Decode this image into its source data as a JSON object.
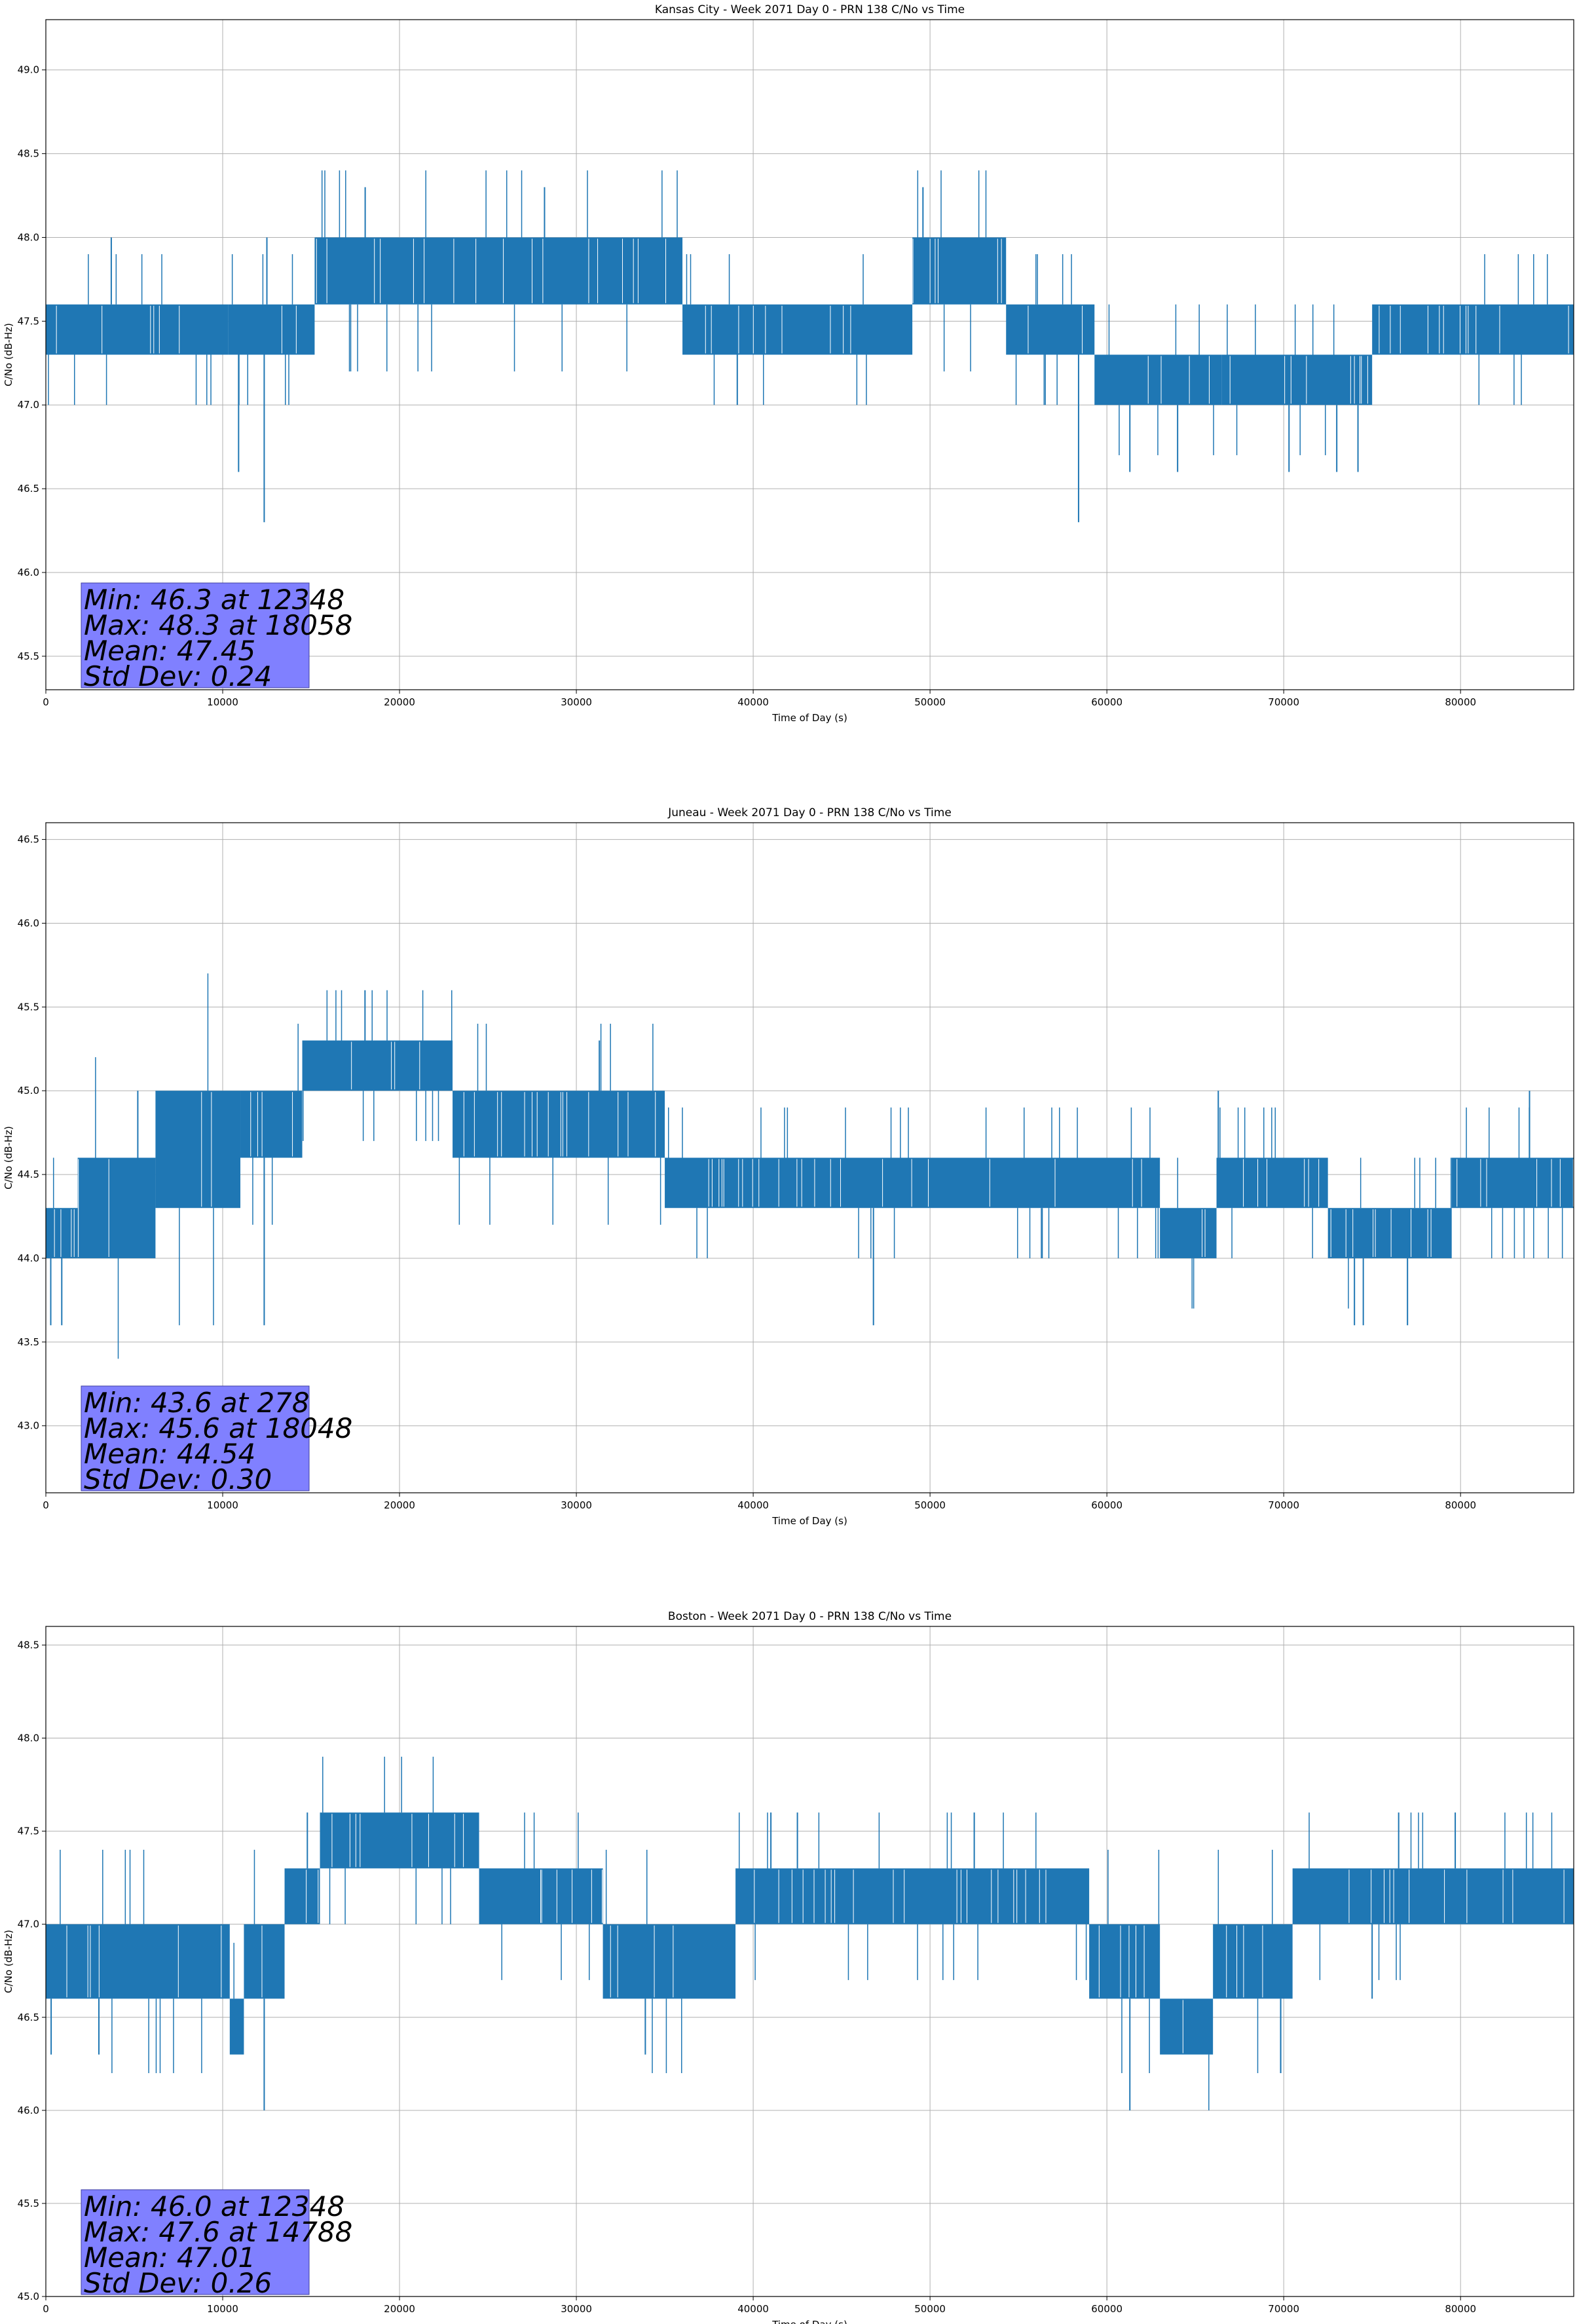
{
  "chart_data": [
    {
      "type": "line",
      "title": "Kansas City - Week 2071 Day 0 - PRN 138 C/No vs Time",
      "xlabel": "Time of Day (s)",
      "ylabel": "C/No (dB-Hz)",
      "xlim": [
        0,
        86400
      ],
      "ylim": [
        45.3,
        49.3
      ],
      "xticks": [
        0,
        10000,
        20000,
        30000,
        40000,
        50000,
        60000,
        70000,
        80000
      ],
      "yticks": [
        45.5,
        46.0,
        46.5,
        47.0,
        47.5,
        48.0,
        48.5,
        49.0
      ],
      "grid": true,
      "color": "#1f77b4",
      "series": [
        {
          "name": "C/No",
          "segments": [
            {
              "x_start": 0,
              "x_end": 10300,
              "low": 47.3,
              "high": 47.6
            },
            {
              "x_start": 10300,
              "x_end": 15200,
              "low": 47.3,
              "high": 47.6
            },
            {
              "x_start": 15200,
              "x_end": 36000,
              "low": 47.6,
              "high": 48.0
            },
            {
              "x_start": 36000,
              "x_end": 49000,
              "low": 47.3,
              "high": 47.6
            },
            {
              "x_start": 49000,
              "x_end": 54300,
              "low": 47.6,
              "high": 48.0
            },
            {
              "x_start": 54300,
              "x_end": 59300,
              "low": 47.3,
              "high": 47.6
            },
            {
              "x_start": 59300,
              "x_end": 66500,
              "low": 47.0,
              "high": 47.3
            },
            {
              "x_start": 66500,
              "x_end": 75000,
              "low": 47.0,
              "high": 47.3
            },
            {
              "x_start": 75000,
              "x_end": 86400,
              "low": 47.3,
              "high": 47.6
            }
          ],
          "dips": [
            {
              "x": 10900,
              "y": 46.6
            },
            {
              "x": 12348,
              "y": 46.3
            },
            {
              "x": 39100,
              "y": 47.0
            },
            {
              "x": 58400,
              "y": 46.3
            },
            {
              "x": 61300,
              "y": 46.6
            },
            {
              "x": 64000,
              "y": 46.6
            },
            {
              "x": 70300,
              "y": 46.6
            },
            {
              "x": 73000,
              "y": 46.6
            },
            {
              "x": 74200,
              "y": 46.6
            }
          ],
          "spikes": [
            {
              "x": 3700,
              "y": 48.0
            },
            {
              "x": 12500,
              "y": 48.0
            },
            {
              "x": 18058,
              "y": 48.3
            },
            {
              "x": 28200,
              "y": 48.3
            },
            {
              "x": 49600,
              "y": 48.3
            }
          ]
        }
      ],
      "stats": {
        "min": "Min: 46.3 at 12348",
        "max": "Max: 48.3 at 18058",
        "mean": "Mean: 47.45",
        "std": "Std Dev: 0.24"
      },
      "stats_box_color": "#8080ff"
    },
    {
      "type": "line",
      "title": "Juneau - Week 2071 Day 0 - PRN 138 C/No vs Time",
      "xlabel": "Time of Day (s)",
      "ylabel": "C/No (dB-Hz)",
      "xlim": [
        0,
        86400
      ],
      "ylim": [
        42.6,
        46.6
      ],
      "xticks": [
        0,
        10000,
        20000,
        30000,
        40000,
        50000,
        60000,
        70000,
        80000
      ],
      "yticks": [
        43.0,
        43.5,
        44.0,
        44.5,
        45.0,
        45.5,
        46.0,
        46.5
      ],
      "grid": true,
      "color": "#1f77b4",
      "series": [
        {
          "name": "C/No",
          "segments": [
            {
              "x_start": 0,
              "x_end": 1800,
              "low": 44.0,
              "high": 44.3
            },
            {
              "x_start": 1800,
              "x_end": 6200,
              "low": 44.0,
              "high": 44.6
            },
            {
              "x_start": 6200,
              "x_end": 11000,
              "low": 44.3,
              "high": 45.0
            },
            {
              "x_start": 11000,
              "x_end": 14500,
              "low": 44.6,
              "high": 45.0
            },
            {
              "x_start": 14500,
              "x_end": 23000,
              "low": 45.0,
              "high": 45.3
            },
            {
              "x_start": 23000,
              "x_end": 35000,
              "low": 44.6,
              "high": 45.0
            },
            {
              "x_start": 35000,
              "x_end": 63000,
              "low": 44.3,
              "high": 44.6
            },
            {
              "x_start": 63000,
              "x_end": 66200,
              "low": 44.0,
              "high": 44.3
            },
            {
              "x_start": 66200,
              "x_end": 72500,
              "low": 44.3,
              "high": 44.6
            },
            {
              "x_start": 72500,
              "x_end": 79500,
              "low": 44.0,
              "high": 44.3
            },
            {
              "x_start": 79500,
              "x_end": 86400,
              "low": 44.3,
              "high": 44.6
            }
          ],
          "dips": [
            {
              "x": 278,
              "y": 43.6
            },
            {
              "x": 900,
              "y": 43.6
            },
            {
              "x": 12348,
              "y": 43.6
            },
            {
              "x": 46800,
              "y": 43.6
            },
            {
              "x": 74000,
              "y": 43.6
            },
            {
              "x": 74500,
              "y": 43.6
            },
            {
              "x": 77000,
              "y": 43.6
            }
          ],
          "spikes": [
            {
              "x": 18048,
              "y": 45.6
            },
            {
              "x": 31300,
              "y": 45.3
            },
            {
              "x": 5200,
              "y": 45.0
            },
            {
              "x": 66300,
              "y": 45.0
            },
            {
              "x": 83900,
              "y": 45.0
            }
          ]
        }
      ],
      "stats": {
        "min": "Min: 43.6 at 278",
        "max": "Max: 45.6 at 18048",
        "mean": "Mean: 44.54",
        "std": "Std Dev: 0.30"
      },
      "stats_box_color": "#8080ff"
    },
    {
      "type": "line",
      "title": "Boston - Week 2071 Day 0 - PRN 138 C/No vs Time",
      "xlabel": "Time of Day (s)",
      "ylabel": "C/No (dB-Hz)",
      "xlim": [
        0,
        86400
      ],
      "ylim": [
        45.0,
        48.6
      ],
      "xticks": [
        0,
        10000,
        20000,
        30000,
        40000,
        50000,
        60000,
        70000,
        80000
      ],
      "yticks": [
        45.0,
        45.5,
        46.0,
        46.5,
        47.0,
        47.5,
        48.0,
        48.5
      ],
      "grid": true,
      "color": "#1f77b4",
      "series": [
        {
          "name": "C/No",
          "segments": [
            {
              "x_start": 0,
              "x_end": 10400,
              "low": 46.6,
              "high": 47.0
            },
            {
              "x_start": 10400,
              "x_end": 11200,
              "low": 46.3,
              "high": 46.6
            },
            {
              "x_start": 11200,
              "x_end": 13500,
              "low": 46.6,
              "high": 47.0
            },
            {
              "x_start": 13500,
              "x_end": 15500,
              "low": 47.0,
              "high": 47.3
            },
            {
              "x_start": 15500,
              "x_end": 24500,
              "low": 47.3,
              "high": 47.6
            },
            {
              "x_start": 24500,
              "x_end": 31500,
              "low": 47.0,
              "high": 47.3
            },
            {
              "x_start": 31500,
              "x_end": 39000,
              "low": 46.6,
              "high": 47.0
            },
            {
              "x_start": 39000,
              "x_end": 59000,
              "low": 47.0,
              "high": 47.3
            },
            {
              "x_start": 59000,
              "x_end": 63000,
              "low": 46.6,
              "high": 47.0
            },
            {
              "x_start": 63000,
              "x_end": 66000,
              "low": 46.3,
              "high": 46.6
            },
            {
              "x_start": 66000,
              "x_end": 70500,
              "low": 46.6,
              "high": 47.0
            },
            {
              "x_start": 70500,
              "x_end": 86400,
              "low": 47.0,
              "high": 47.3
            }
          ],
          "dips": [
            {
              "x": 300,
              "y": 46.3
            },
            {
              "x": 3000,
              "y": 46.3
            },
            {
              "x": 12348,
              "y": 46.0
            },
            {
              "x": 33900,
              "y": 46.3
            },
            {
              "x": 61300,
              "y": 46.0
            },
            {
              "x": 75000,
              "y": 46.6
            }
          ],
          "spikes": [
            {
              "x": 14788,
              "y": 47.6
            },
            {
              "x": 41000,
              "y": 47.6
            },
            {
              "x": 42500,
              "y": 47.6
            },
            {
              "x": 52500,
              "y": 47.6
            },
            {
              "x": 76500,
              "y": 47.6
            },
            {
              "x": 79700,
              "y": 47.6
            }
          ]
        }
      ],
      "stats": {
        "min": "Min: 46.0 at 12348",
        "max": "Max: 47.6 at 14788",
        "mean": "Mean: 47.01",
        "std": "Std Dev: 0.26"
      },
      "stats_box_color": "#8080ff"
    }
  ]
}
